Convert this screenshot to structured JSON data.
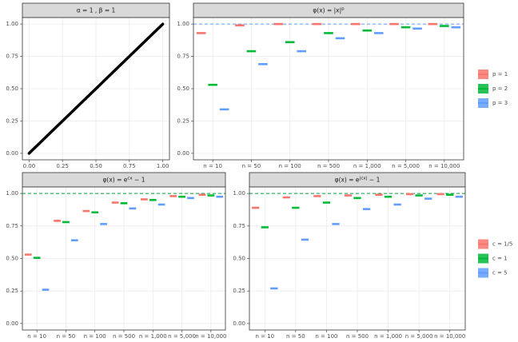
{
  "chart_data": [
    {
      "type": "line",
      "title": "α = 1 , β = 1",
      "x": [
        0,
        1
      ],
      "values": [
        0,
        1
      ],
      "color": "#000000",
      "xlim": [
        -0.05,
        1.05
      ],
      "ylim": [
        -0.05,
        1.05
      ],
      "xticks": [
        {
          "value": 0,
          "label": "0.00"
        },
        {
          "value": 0.25,
          "label": "0.25"
        },
        {
          "value": 0.5,
          "label": "0.50"
        },
        {
          "value": 0.75,
          "label": "0.75"
        },
        {
          "value": 1,
          "label": "1.00"
        }
      ],
      "yticks": [
        {
          "value": 0,
          "label": "0.00"
        },
        {
          "value": 0.25,
          "label": "0.25"
        },
        {
          "value": 0.5,
          "label": "0.50"
        },
        {
          "value": 0.75,
          "label": "0.75"
        },
        {
          "value": 1,
          "label": "1.00"
        }
      ],
      "grid": true
    },
    {
      "type": "crossbar",
      "title": {
        "base": "φ(x)  = |x|",
        "sup": "p"
      },
      "categories": [
        "n = 10",
        "n = 50",
        "n = 100",
        "n = 500",
        "n = 1,000",
        "n = 5,000",
        "n = 10,000"
      ],
      "series": [
        {
          "name": "p = 1",
          "color": "#F8766D",
          "values": [
            0.93,
            0.99,
            1.0,
            1.0,
            1.0,
            1.0,
            1.0
          ]
        },
        {
          "name": "p = 2",
          "color": "#00BA38",
          "values": [
            0.53,
            0.79,
            0.86,
            0.93,
            0.95,
            0.975,
            0.985
          ]
        },
        {
          "name": "p = 3",
          "color": "#619CFF",
          "values": [
            0.34,
            0.69,
            0.79,
            0.89,
            0.93,
            0.965,
            0.975
          ]
        }
      ],
      "hline": 1,
      "hline_color": "#619CFF",
      "ylim": [
        -0.05,
        1.05
      ],
      "yticks": [
        {
          "value": 0,
          "label": "0.00"
        },
        {
          "value": 0.25,
          "label": "0.25"
        },
        {
          "value": 0.5,
          "label": "0.50"
        },
        {
          "value": 0.75,
          "label": "0.75"
        },
        {
          "value": 1,
          "label": "1.00"
        }
      ],
      "grid": true,
      "legend": "right"
    },
    {
      "type": "crossbar",
      "title": {
        "base": "φ(x)  = e",
        "sup": "cx",
        "tail": " − 1"
      },
      "categories": [
        "n = 10",
        "n = 50",
        "n = 100",
        "n = 500",
        "n = 1,000",
        "n = 5,000",
        "n = 10,000"
      ],
      "series": [
        {
          "name": "c = 1/5",
          "color": "#F8766D",
          "values": [
            0.53,
            0.79,
            0.865,
            0.93,
            0.955,
            0.98,
            0.99
          ]
        },
        {
          "name": "c = 1",
          "color": "#00BA38",
          "values": [
            0.505,
            0.78,
            0.855,
            0.925,
            0.95,
            0.975,
            0.985
          ]
        },
        {
          "name": "c = 5",
          "color": "#619CFF",
          "values": [
            0.26,
            0.64,
            0.765,
            0.885,
            0.915,
            0.965,
            0.975
          ]
        }
      ],
      "hline": 1,
      "hline_color": "#00A040",
      "ylim": [
        -0.05,
        1.05
      ],
      "yticks": [
        {
          "value": 0,
          "label": "0.00"
        },
        {
          "value": 0.25,
          "label": "0.25"
        },
        {
          "value": 0.5,
          "label": "0.50"
        },
        {
          "value": 0.75,
          "label": "0.75"
        },
        {
          "value": 1,
          "label": "1.00"
        }
      ],
      "grid": true
    },
    {
      "type": "crossbar",
      "title": {
        "base": "φ(x)  = e",
        "sup": "|cx|",
        "tail": " − 1"
      },
      "categories": [
        "n = 10",
        "n = 50",
        "n = 100",
        "n = 500",
        "n = 1,000",
        "n = 5,000",
        "n = 10,000"
      ],
      "series": [
        {
          "name": "c = 1/5",
          "color": "#F8766D",
          "values": [
            0.89,
            0.97,
            0.98,
            0.985,
            0.99,
            0.995,
            0.995
          ]
        },
        {
          "name": "c = 1",
          "color": "#00BA38",
          "values": [
            0.74,
            0.89,
            0.93,
            0.965,
            0.975,
            0.985,
            0.99
          ]
        },
        {
          "name": "c = 5",
          "color": "#619CFF",
          "values": [
            0.27,
            0.645,
            0.765,
            0.88,
            0.915,
            0.96,
            0.975
          ]
        }
      ],
      "hline": 1,
      "hline_color": "#00A040",
      "ylim": [
        -0.05,
        1.05
      ],
      "yticks": [
        {
          "value": 0,
          "label": "0.00"
        },
        {
          "value": 0.25,
          "label": "0.25"
        },
        {
          "value": 0.5,
          "label": "0.50"
        },
        {
          "value": 0.75,
          "label": "0.75"
        },
        {
          "value": 1,
          "label": "1.00"
        }
      ],
      "grid": true,
      "legend": "right"
    }
  ]
}
